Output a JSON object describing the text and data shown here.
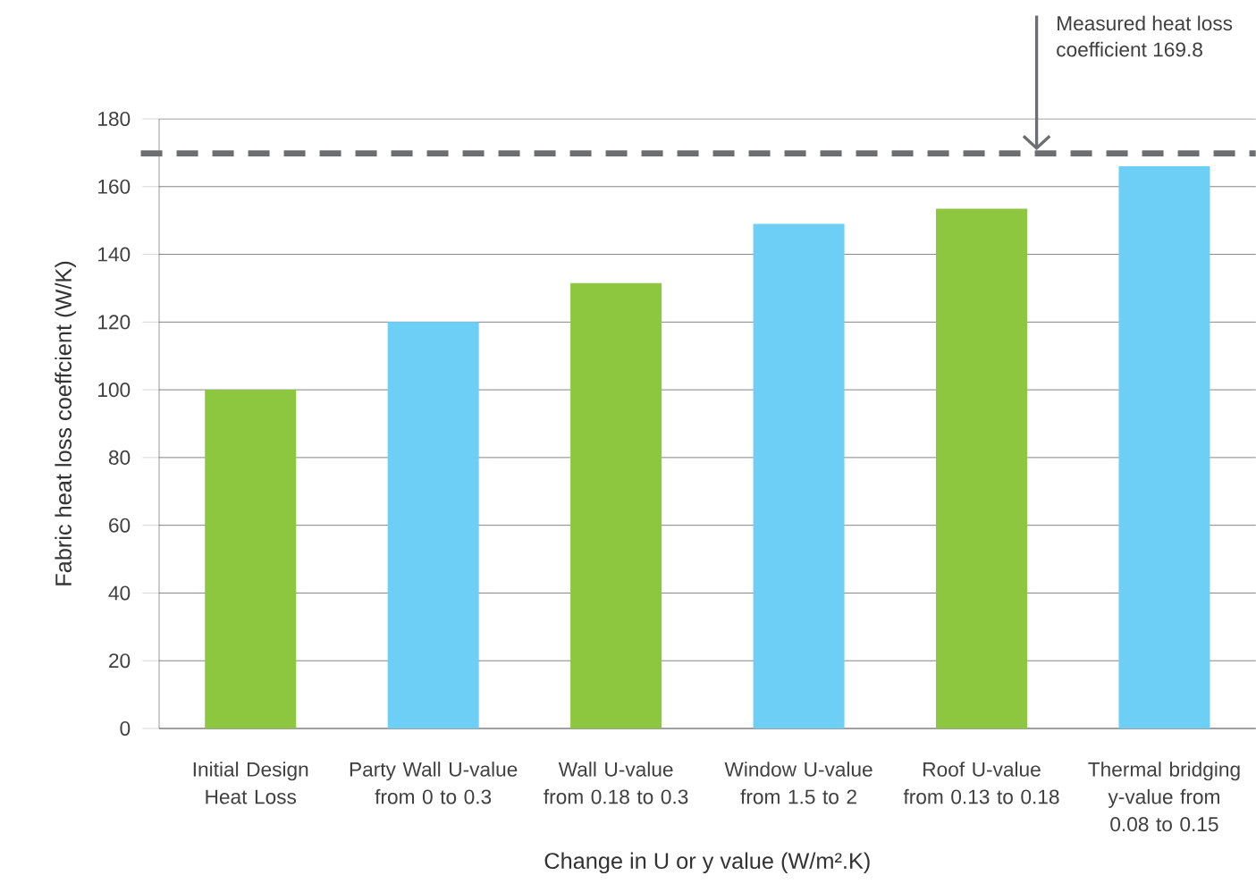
{
  "chart_data": {
    "type": "bar",
    "xlabel": "Change in U or y value (W/m².K)",
    "ylabel": "Fabric heat loss coeffcient (W/K)",
    "categories": [
      "Initial Design Heat Loss",
      "Party Wall U-value from 0 to 0.3",
      "Wall U-value from 0.18 to 0.3",
      "Window U-value from 1.5 to 2",
      "Roof U-value from 0.13 to 0.18",
      "Thermal bridging y-value from 0.08 to 0.15"
    ],
    "values": [
      100,
      120,
      131.5,
      149,
      153.5,
      166
    ],
    "colors": [
      "#8dc63f",
      "#6dcff6",
      "#8dc63f",
      "#6dcff6",
      "#8dc63f",
      "#6dcff6"
    ],
    "ylim": [
      0,
      180
    ],
    "yticks": [
      0,
      20,
      40,
      60,
      80,
      100,
      120,
      140,
      160,
      180
    ],
    "grid": "y",
    "ref_lines": [
      {
        "axis": "y",
        "value": 169.8,
        "label": "Measured heat loss coefficient 169.8",
        "color": "#6d6e71",
        "line_style": "dashed"
      }
    ]
  }
}
